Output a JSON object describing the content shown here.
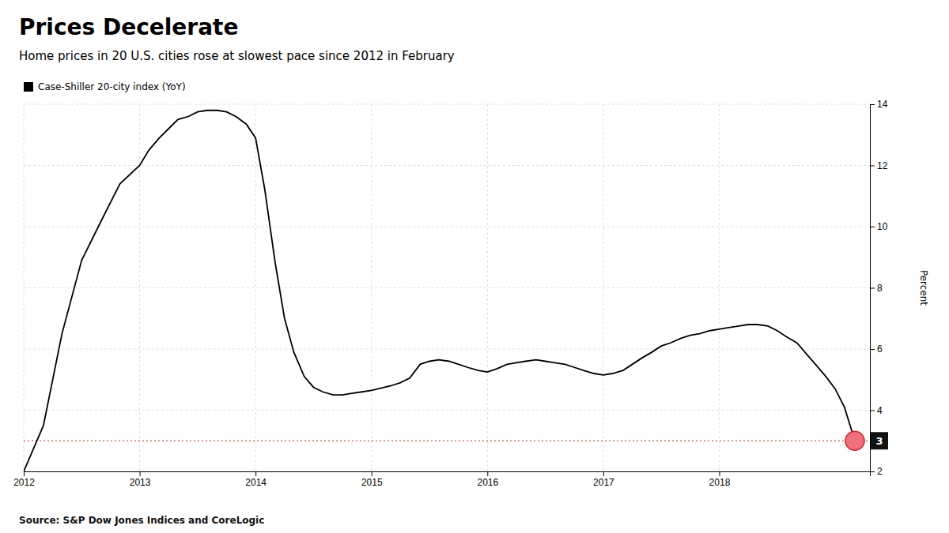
{
  "chart_data": {
    "type": "line",
    "title": "Prices Decelerate",
    "subtitle": "Home prices in 20 U.S. cities rose at slowest pace since 2012 in February",
    "source": "Source: S&P Dow Jones Indices and CoreLogic",
    "y_label": "Percent",
    "x": [
      2012.0,
      2012.17,
      2012.33,
      2012.5,
      2012.67,
      2012.83,
      2013.0,
      2013.08,
      2013.17,
      2013.25,
      2013.33,
      2013.42,
      2013.5,
      2013.58,
      2013.67,
      2013.75,
      2013.83,
      2013.92,
      2014.0,
      2014.08,
      2014.17,
      2014.25,
      2014.33,
      2014.42,
      2014.5,
      2014.58,
      2014.67,
      2014.75,
      2014.83,
      2014.92,
      2015.0,
      2015.08,
      2015.17,
      2015.25,
      2015.33,
      2015.42,
      2015.5,
      2015.58,
      2015.67,
      2015.75,
      2015.83,
      2015.92,
      2016.0,
      2016.08,
      2016.17,
      2016.25,
      2016.33,
      2016.42,
      2016.5,
      2016.58,
      2016.67,
      2016.75,
      2016.83,
      2016.92,
      2017.0,
      2017.08,
      2017.17,
      2017.25,
      2017.33,
      2017.42,
      2017.5,
      2017.58,
      2017.67,
      2017.75,
      2017.83,
      2017.92,
      2018.0,
      2018.08,
      2018.17,
      2018.25,
      2018.33,
      2018.42,
      2018.5,
      2018.58,
      2018.67,
      2018.75,
      2018.83,
      2018.92,
      2019.0,
      2019.08,
      2019.17
    ],
    "series": [
      {
        "name": "Case-Shiller 20-city index (YoY)",
        "color": "#000000",
        "values": [
          2.0,
          3.5,
          6.5,
          8.9,
          10.2,
          11.4,
          12.0,
          12.5,
          12.9,
          13.2,
          13.5,
          13.6,
          13.75,
          13.8,
          13.8,
          13.75,
          13.6,
          13.35,
          12.9,
          11.2,
          8.8,
          7.0,
          5.9,
          5.1,
          4.75,
          4.6,
          4.5,
          4.5,
          4.55,
          4.6,
          4.65,
          4.72,
          4.8,
          4.9,
          5.05,
          5.5,
          5.6,
          5.65,
          5.6,
          5.5,
          5.4,
          5.3,
          5.25,
          5.35,
          5.5,
          5.55,
          5.6,
          5.65,
          5.6,
          5.55,
          5.5,
          5.4,
          5.3,
          5.2,
          5.15,
          5.2,
          5.3,
          5.5,
          5.7,
          5.9,
          6.1,
          6.2,
          6.35,
          6.45,
          6.5,
          6.6,
          6.65,
          6.7,
          6.75,
          6.8,
          6.8,
          6.75,
          6.6,
          6.4,
          6.2,
          5.85,
          5.5,
          5.1,
          4.7,
          4.1,
          3.0
        ]
      }
    ],
    "xlim": [
      2012.0,
      2019.3
    ],
    "xticks": [
      2012,
      2013,
      2014,
      2015,
      2016,
      2017,
      2018
    ],
    "ylim": [
      2,
      14
    ],
    "yticks": [
      2,
      4,
      6,
      8,
      10,
      12,
      14
    ],
    "grid": true,
    "legend": "top-left",
    "reference_line": {
      "value": 3.0,
      "color": "#cc2222"
    },
    "end_point": {
      "x": 2019.17,
      "y": 3.0,
      "color": "#f07080"
    },
    "annotations": [
      {
        "text": "3",
        "y": 3.0
      }
    ]
  }
}
